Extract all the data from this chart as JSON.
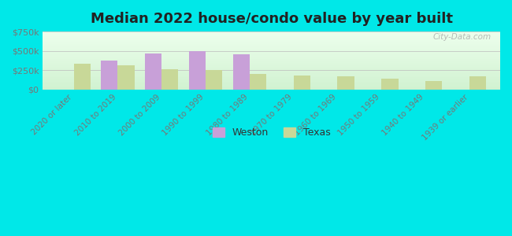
{
  "title": "Median 2022 house/condo value by year built",
  "categories": [
    "2020 or later",
    "2010 to 2019",
    "2000 to 2009",
    "1990 to 1999",
    "1980 to 1989",
    "1970 to 1979",
    "1960 to 1969",
    "1950 to 1959",
    "1940 to 1949",
    "1939 or earlier"
  ],
  "weston_values": [
    0,
    375000,
    460000,
    500000,
    450000,
    0,
    0,
    0,
    0,
    0
  ],
  "texas_values": [
    330000,
    310000,
    260000,
    255000,
    200000,
    175000,
    165000,
    140000,
    110000,
    165000
  ],
  "weston_color": "#c8a0d8",
  "texas_color": "#c8d898",
  "outer_bg": "#00e8e8",
  "ylim": [
    0,
    750000
  ],
  "yticks": [
    0,
    250000,
    500000,
    750000
  ],
  "ytick_labels": [
    "$0",
    "$250k",
    "$500k",
    "$750k"
  ],
  "watermark": "City-Data.com",
  "legend_labels": [
    "Weston",
    "Texas"
  ],
  "bar_width": 0.38,
  "title_fontsize": 13,
  "tick_fontsize": 7.5,
  "ytick_fontsize": 8
}
